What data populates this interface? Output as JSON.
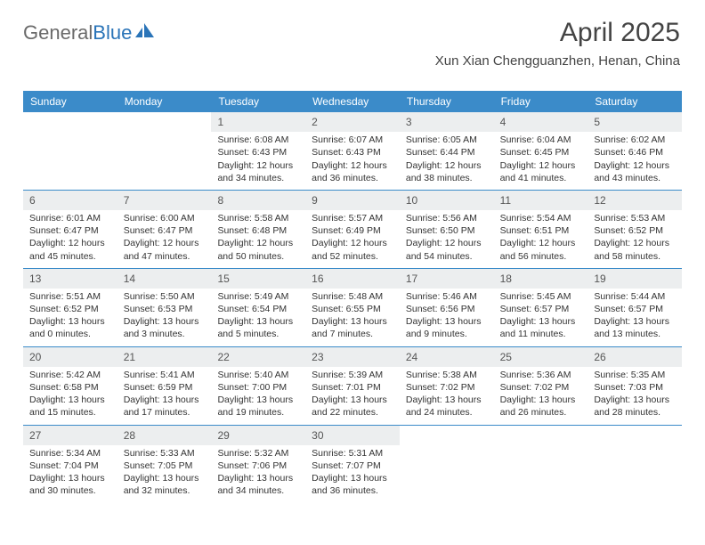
{
  "logo": {
    "part1": "General",
    "part2": "Blue"
  },
  "header": {
    "month": "April 2025",
    "location": "Xun Xian Chengguanzhen, Henan, China"
  },
  "colors": {
    "header_bg": "#3b8bc9",
    "header_text": "#ffffff",
    "num_bg": "#eceeef",
    "border": "#3b8bc9",
    "body_text": "#333333",
    "logo_gray": "#6a6a6a",
    "logo_blue": "#2a74b8"
  },
  "day_headers": [
    "Sunday",
    "Monday",
    "Tuesday",
    "Wednesday",
    "Thursday",
    "Friday",
    "Saturday"
  ],
  "weeks": [
    [
      {
        "n": "",
        "sr": "",
        "ss": "",
        "dl": ""
      },
      {
        "n": "",
        "sr": "",
        "ss": "",
        "dl": ""
      },
      {
        "n": "1",
        "sr": "Sunrise: 6:08 AM",
        "ss": "Sunset: 6:43 PM",
        "dl": "Daylight: 12 hours and 34 minutes."
      },
      {
        "n": "2",
        "sr": "Sunrise: 6:07 AM",
        "ss": "Sunset: 6:43 PM",
        "dl": "Daylight: 12 hours and 36 minutes."
      },
      {
        "n": "3",
        "sr": "Sunrise: 6:05 AM",
        "ss": "Sunset: 6:44 PM",
        "dl": "Daylight: 12 hours and 38 minutes."
      },
      {
        "n": "4",
        "sr": "Sunrise: 6:04 AM",
        "ss": "Sunset: 6:45 PM",
        "dl": "Daylight: 12 hours and 41 minutes."
      },
      {
        "n": "5",
        "sr": "Sunrise: 6:02 AM",
        "ss": "Sunset: 6:46 PM",
        "dl": "Daylight: 12 hours and 43 minutes."
      }
    ],
    [
      {
        "n": "6",
        "sr": "Sunrise: 6:01 AM",
        "ss": "Sunset: 6:47 PM",
        "dl": "Daylight: 12 hours and 45 minutes."
      },
      {
        "n": "7",
        "sr": "Sunrise: 6:00 AM",
        "ss": "Sunset: 6:47 PM",
        "dl": "Daylight: 12 hours and 47 minutes."
      },
      {
        "n": "8",
        "sr": "Sunrise: 5:58 AM",
        "ss": "Sunset: 6:48 PM",
        "dl": "Daylight: 12 hours and 50 minutes."
      },
      {
        "n": "9",
        "sr": "Sunrise: 5:57 AM",
        "ss": "Sunset: 6:49 PM",
        "dl": "Daylight: 12 hours and 52 minutes."
      },
      {
        "n": "10",
        "sr": "Sunrise: 5:56 AM",
        "ss": "Sunset: 6:50 PM",
        "dl": "Daylight: 12 hours and 54 minutes."
      },
      {
        "n": "11",
        "sr": "Sunrise: 5:54 AM",
        "ss": "Sunset: 6:51 PM",
        "dl": "Daylight: 12 hours and 56 minutes."
      },
      {
        "n": "12",
        "sr": "Sunrise: 5:53 AM",
        "ss": "Sunset: 6:52 PM",
        "dl": "Daylight: 12 hours and 58 minutes."
      }
    ],
    [
      {
        "n": "13",
        "sr": "Sunrise: 5:51 AM",
        "ss": "Sunset: 6:52 PM",
        "dl": "Daylight: 13 hours and 0 minutes."
      },
      {
        "n": "14",
        "sr": "Sunrise: 5:50 AM",
        "ss": "Sunset: 6:53 PM",
        "dl": "Daylight: 13 hours and 3 minutes."
      },
      {
        "n": "15",
        "sr": "Sunrise: 5:49 AM",
        "ss": "Sunset: 6:54 PM",
        "dl": "Daylight: 13 hours and 5 minutes."
      },
      {
        "n": "16",
        "sr": "Sunrise: 5:48 AM",
        "ss": "Sunset: 6:55 PM",
        "dl": "Daylight: 13 hours and 7 minutes."
      },
      {
        "n": "17",
        "sr": "Sunrise: 5:46 AM",
        "ss": "Sunset: 6:56 PM",
        "dl": "Daylight: 13 hours and 9 minutes."
      },
      {
        "n": "18",
        "sr": "Sunrise: 5:45 AM",
        "ss": "Sunset: 6:57 PM",
        "dl": "Daylight: 13 hours and 11 minutes."
      },
      {
        "n": "19",
        "sr": "Sunrise: 5:44 AM",
        "ss": "Sunset: 6:57 PM",
        "dl": "Daylight: 13 hours and 13 minutes."
      }
    ],
    [
      {
        "n": "20",
        "sr": "Sunrise: 5:42 AM",
        "ss": "Sunset: 6:58 PM",
        "dl": "Daylight: 13 hours and 15 minutes."
      },
      {
        "n": "21",
        "sr": "Sunrise: 5:41 AM",
        "ss": "Sunset: 6:59 PM",
        "dl": "Daylight: 13 hours and 17 minutes."
      },
      {
        "n": "22",
        "sr": "Sunrise: 5:40 AM",
        "ss": "Sunset: 7:00 PM",
        "dl": "Daylight: 13 hours and 19 minutes."
      },
      {
        "n": "23",
        "sr": "Sunrise: 5:39 AM",
        "ss": "Sunset: 7:01 PM",
        "dl": "Daylight: 13 hours and 22 minutes."
      },
      {
        "n": "24",
        "sr": "Sunrise: 5:38 AM",
        "ss": "Sunset: 7:02 PM",
        "dl": "Daylight: 13 hours and 24 minutes."
      },
      {
        "n": "25",
        "sr": "Sunrise: 5:36 AM",
        "ss": "Sunset: 7:02 PM",
        "dl": "Daylight: 13 hours and 26 minutes."
      },
      {
        "n": "26",
        "sr": "Sunrise: 5:35 AM",
        "ss": "Sunset: 7:03 PM",
        "dl": "Daylight: 13 hours and 28 minutes."
      }
    ],
    [
      {
        "n": "27",
        "sr": "Sunrise: 5:34 AM",
        "ss": "Sunset: 7:04 PM",
        "dl": "Daylight: 13 hours and 30 minutes."
      },
      {
        "n": "28",
        "sr": "Sunrise: 5:33 AM",
        "ss": "Sunset: 7:05 PM",
        "dl": "Daylight: 13 hours and 32 minutes."
      },
      {
        "n": "29",
        "sr": "Sunrise: 5:32 AM",
        "ss": "Sunset: 7:06 PM",
        "dl": "Daylight: 13 hours and 34 minutes."
      },
      {
        "n": "30",
        "sr": "Sunrise: 5:31 AM",
        "ss": "Sunset: 7:07 PM",
        "dl": "Daylight: 13 hours and 36 minutes."
      },
      {
        "n": "",
        "sr": "",
        "ss": "",
        "dl": ""
      },
      {
        "n": "",
        "sr": "",
        "ss": "",
        "dl": ""
      },
      {
        "n": "",
        "sr": "",
        "ss": "",
        "dl": ""
      }
    ]
  ]
}
